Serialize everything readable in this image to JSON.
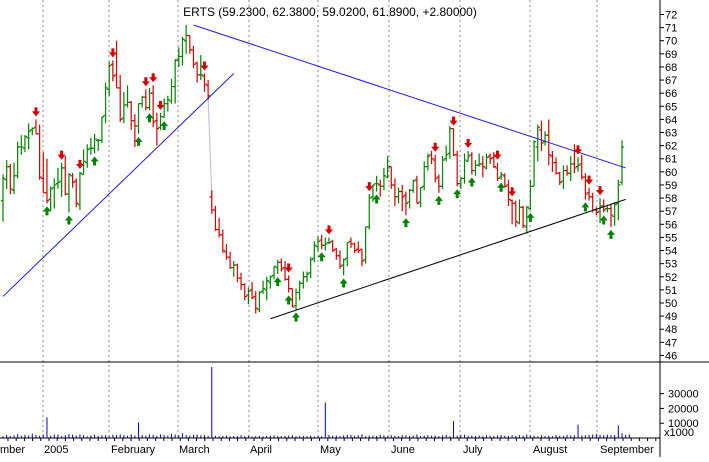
{
  "colors": {
    "up": "#008000",
    "down": "#d00000",
    "volume": "#0000c8",
    "trendline_upper": "#1c1cd6",
    "trendline_lower_left": "#1c1cd6",
    "trendline_lower_right": "#000000",
    "grid": "#888888",
    "frame": "#000000"
  },
  "chart_data": {
    "type": "candlestick",
    "title": "ERTS (59.2300, 62.3800, 59.0200, 61.8900, +2.80000)",
    "ticker": "ERTS",
    "last_bar": {
      "open": 59.23,
      "high": 62.38,
      "low": 59.02,
      "close": 61.89,
      "change": 2.8
    },
    "x_labels": [
      "mber",
      "2005",
      "February",
      "March",
      "April",
      "May",
      "June",
      "July",
      "August",
      "September"
    ],
    "price_axis": {
      "min": 45.5,
      "max": 72.8,
      "ticks": [
        "72",
        "71",
        "70",
        "69",
        "68",
        "67",
        "66",
        "65",
        "64",
        "63",
        "62",
        "61",
        "60",
        "59",
        "58",
        "57",
        "56",
        "55",
        "54",
        "53",
        "52",
        "51",
        "50",
        "49",
        "48",
        "47",
        "46"
      ]
    },
    "volume_axis": {
      "max": 48000,
      "ticks": [
        "30000",
        "20000",
        "10000"
      ],
      "unit_label": "x1000"
    },
    "trendlines": [
      {
        "name": "upper-resistance",
        "from": [
          52,
          71.2
        ],
        "to": [
          170,
          60.3
        ]
      },
      {
        "name": "lower-support-left",
        "from": [
          0,
          50.5
        ],
        "to": [
          63,
          67.5
        ]
      },
      {
        "name": "lower-support-right",
        "from": [
          73,
          48.8
        ],
        "to": [
          170,
          57.9
        ]
      }
    ],
    "buy_signals": [
      12,
      18,
      25,
      37,
      40,
      44,
      75,
      78,
      80,
      87,
      93,
      102,
      110,
      119,
      124,
      128,
      136,
      144,
      159,
      164,
      166
    ],
    "sell_signals": [
      9,
      16,
      21,
      30,
      39,
      41,
      43,
      55,
      78,
      89,
      100,
      118,
      123,
      127,
      135,
      139,
      157,
      160,
      163
    ],
    "ohlc": [
      [
        57.8,
        59.8,
        56.2,
        59.5
      ],
      [
        59.4,
        60.9,
        58.7,
        60.4
      ],
      [
        60.4,
        60.6,
        58.3,
        58.7
      ],
      [
        58.6,
        60.7,
        58.3,
        59.7
      ],
      [
        59.7,
        62.3,
        59.5,
        61.9
      ],
      [
        61.9,
        62.8,
        61.3,
        61.9
      ],
      [
        61.8,
        62.8,
        61.5,
        62.7
      ],
      [
        62.6,
        63.7,
        61.7,
        63.1
      ],
      [
        63.2,
        63.4,
        62.8,
        63.3
      ],
      [
        63.4,
        64.0,
        62.9,
        62.9
      ],
      [
        62.9,
        63.6,
        59.4,
        59.6
      ],
      [
        59.5,
        61.5,
        58.4,
        58.4
      ],
      [
        58.4,
        61.0,
        57.6,
        57.8
      ],
      [
        57.9,
        58.9,
        57.0,
        58.7
      ],
      [
        58.8,
        59.5,
        57.2,
        59.0
      ],
      [
        59.1,
        60.3,
        58.7,
        59.2
      ],
      [
        59.3,
        60.7,
        58.1,
        60.3
      ],
      [
        60.3,
        61.2,
        58.2,
        58.3
      ],
      [
        58.3,
        59.9,
        56.9,
        59.8
      ],
      [
        59.7,
        59.9,
        58.8,
        59.2
      ],
      [
        59.3,
        59.5,
        57.3,
        57.6
      ],
      [
        57.5,
        60.0,
        57.1,
        59.9
      ],
      [
        59.8,
        61.7,
        59.8,
        60.8
      ],
      [
        60.7,
        62.1,
        60.3,
        61.7
      ],
      [
        61.8,
        62.6,
        61.3,
        61.8
      ],
      [
        61.8,
        62.9,
        61.4,
        62.5
      ],
      [
        62.4,
        62.5,
        61.6,
        62.4
      ],
      [
        62.4,
        64.2,
        62.2,
        64.2
      ],
      [
        64.3,
        66.8,
        63.7,
        66.4
      ],
      [
        66.3,
        68.4,
        65.8,
        68.1
      ],
      [
        68.2,
        68.5,
        66.9,
        67.3
      ],
      [
        67.4,
        70.0,
        66.4,
        66.4
      ],
      [
        66.4,
        67.4,
        63.8,
        64.0
      ],
      [
        64.1,
        66.1,
        63.7,
        65.1
      ],
      [
        65.1,
        66.6,
        64.9,
        65.3
      ],
      [
        65.3,
        65.4,
        63.2,
        63.9
      ],
      [
        63.9,
        64.4,
        61.9,
        63.5
      ],
      [
        63.5,
        65.2,
        62.9,
        65.2
      ],
      [
        65.2,
        65.8,
        64.9,
        65.7
      ],
      [
        65.7,
        66.3,
        64.7,
        64.9
      ],
      [
        64.9,
        66.4,
        64.7,
        66.0
      ],
      [
        66.0,
        66.6,
        63.4,
        63.8
      ],
      [
        63.9,
        64.5,
        62.0,
        63.3
      ],
      [
        63.4,
        64.5,
        63.2,
        64.2
      ],
      [
        64.2,
        65.6,
        64.1,
        65.2
      ],
      [
        65.2,
        65.8,
        64.6,
        65.5
      ],
      [
        65.4,
        67.1,
        65.2,
        66.5
      ],
      [
        66.5,
        68.6,
        65.2,
        68.5
      ],
      [
        68.6,
        69.5,
        68.0,
        68.8
      ],
      [
        68.8,
        70.3,
        68.1,
        70.1
      ],
      [
        70.0,
        71.2,
        69.0,
        70.4
      ],
      [
        70.4,
        70.4,
        69.0,
        69.3
      ],
      [
        69.3,
        69.6,
        67.9,
        68.2
      ],
      [
        68.3,
        68.4,
        66.8,
        67.4
      ],
      [
        67.4,
        68.9,
        67.0,
        67.4
      ],
      [
        67.3,
        67.5,
        66.1,
        66.7
      ],
      [
        66.6,
        67.0,
        65.5,
        65.8
      ],
      [
        58.1,
        58.6,
        56.8,
        57.1
      ],
      [
        57.1,
        57.4,
        55.5,
        55.6
      ],
      [
        55.6,
        56.5,
        55.0,
        55.2
      ],
      [
        55.2,
        55.6,
        53.8,
        54.0
      ],
      [
        53.9,
        54.5,
        53.3,
        53.5
      ],
      [
        53.5,
        53.9,
        52.6,
        52.7
      ],
      [
        52.7,
        53.2,
        52.0,
        52.9
      ],
      [
        52.9,
        53.0,
        51.6,
        51.9
      ],
      [
        51.9,
        52.3,
        51.0,
        51.4
      ],
      [
        51.4,
        51.5,
        50.2,
        50.5
      ],
      [
        50.6,
        51.2,
        49.9,
        50.9
      ],
      [
        51.0,
        51.6,
        50.3,
        50.4
      ],
      [
        50.5,
        50.9,
        49.2,
        49.6
      ],
      [
        49.5,
        50.9,
        49.3,
        50.8
      ],
      [
        50.9,
        51.7,
        50.7,
        51.1
      ],
      [
        51.0,
        52.0,
        50.2,
        51.7
      ],
      [
        51.6,
        52.1,
        51.1,
        52.0
      ],
      [
        52.1,
        52.8,
        51.8,
        52.8
      ],
      [
        52.7,
        53.3,
        52.2,
        53.1
      ],
      [
        53.1,
        53.4,
        52.4,
        52.6
      ],
      [
        52.7,
        53.2,
        51.7,
        51.8
      ],
      [
        51.8,
        52.1,
        50.8,
        51.1
      ],
      [
        51.1,
        51.1,
        49.7,
        49.7
      ],
      [
        49.8,
        51.1,
        49.5,
        50.8
      ],
      [
        50.8,
        51.7,
        50.2,
        51.5
      ],
      [
        51.5,
        52.4,
        51.1,
        52.0
      ],
      [
        52.0,
        52.4,
        51.6,
        52.2
      ],
      [
        52.3,
        53.5,
        51.9,
        53.3
      ],
      [
        53.4,
        54.7,
        53.1,
        54.4
      ],
      [
        54.3,
        55.1,
        53.9,
        54.7
      ],
      [
        54.8,
        55.2,
        54.1,
        54.4
      ],
      [
        54.4,
        55.0,
        54.0,
        54.5
      ],
      [
        54.6,
        55.0,
        54.5,
        54.6
      ],
      [
        54.7,
        54.8,
        53.9,
        54.0
      ],
      [
        54.1,
        54.2,
        53.3,
        53.6
      ],
      [
        53.6,
        54.0,
        52.6,
        52.8
      ],
      [
        52.9,
        53.4,
        52.1,
        53.3
      ],
      [
        53.4,
        54.6,
        52.8,
        54.6
      ],
      [
        54.7,
        55.0,
        54.2,
        54.5
      ],
      [
        54.5,
        54.6,
        53.8,
        54.0
      ],
      [
        54.1,
        54.7,
        53.8,
        54.0
      ],
      [
        54.1,
        54.1,
        52.8,
        53.2
      ],
      [
        53.3,
        55.8,
        53.0,
        55.8
      ],
      [
        55.8,
        58.3,
        55.6,
        58.0
      ],
      [
        58.1,
        59.0,
        57.7,
        59.0
      ],
      [
        59.1,
        59.7,
        58.5,
        59.1
      ],
      [
        59.0,
        59.4,
        58.1,
        58.9
      ],
      [
        58.9,
        60.3,
        58.6,
        59.7
      ],
      [
        59.6,
        61.2,
        59.5,
        60.3
      ],
      [
        60.4,
        60.4,
        58.7,
        59.0
      ],
      [
        59.0,
        59.5,
        57.4,
        58.1
      ],
      [
        58.1,
        58.8,
        57.6,
        58.5
      ],
      [
        58.5,
        59.0,
        57.0,
        58.1
      ],
      [
        58.2,
        58.5,
        56.7,
        57.6
      ],
      [
        57.7,
        58.7,
        57.2,
        58.6
      ],
      [
        58.6,
        59.4,
        58.4,
        59.3
      ],
      [
        59.4,
        59.7,
        57.6,
        57.6
      ],
      [
        57.7,
        58.8,
        57.3,
        58.8
      ],
      [
        58.9,
        60.8,
        58.6,
        60.4
      ],
      [
        60.4,
        61.4,
        60.1,
        61.2
      ],
      [
        61.3,
        61.6,
        60.6,
        61.0
      ],
      [
        60.9,
        61.3,
        59.2,
        59.5
      ],
      [
        59.6,
        59.8,
        58.4,
        58.9
      ],
      [
        58.9,
        61.2,
        58.7,
        60.9
      ],
      [
        61.0,
        62.0,
        60.8,
        61.3
      ],
      [
        61.4,
        63.5,
        61.0,
        63.3
      ],
      [
        63.3,
        63.3,
        61.2,
        61.3
      ],
      [
        61.3,
        61.6,
        58.9,
        59.1
      ],
      [
        59.1,
        59.6,
        58.7,
        59.5
      ],
      [
        59.5,
        61.4,
        59.1,
        60.9
      ],
      [
        60.8,
        61.6,
        60.8,
        61.2
      ],
      [
        61.3,
        61.5,
        59.8,
        60.1
      ],
      [
        60.1,
        60.9,
        59.7,
        60.5
      ],
      [
        60.5,
        61.4,
        60.4,
        60.6
      ],
      [
        60.6,
        61.2,
        59.6,
        60.4
      ],
      [
        60.3,
        61.4,
        60.2,
        61.1
      ],
      [
        61.2,
        61.4,
        60.6,
        61.0
      ],
      [
        61.1,
        61.5,
        60.3,
        60.4
      ],
      [
        60.3,
        60.7,
        59.3,
        59.5
      ],
      [
        59.6,
        60.0,
        59.4,
        59.8
      ],
      [
        59.7,
        59.9,
        58.8,
        58.9
      ],
      [
        59.0,
        59.4,
        57.4,
        57.9
      ],
      [
        57.8,
        57.9,
        56.0,
        57.6
      ],
      [
        57.6,
        57.8,
        55.8,
        56.2
      ],
      [
        56.1,
        57.9,
        56.0,
        57.3
      ],
      [
        57.3,
        57.4,
        55.7,
        55.9
      ],
      [
        55.8,
        57.4,
        55.3,
        57.3
      ],
      [
        57.2,
        59.4,
        57.1,
        58.9
      ],
      [
        58.9,
        62.4,
        58.9,
        62.3
      ],
      [
        61.9,
        63.6,
        60.8,
        63.4
      ],
      [
        63.2,
        63.9,
        61.6,
        62.2
      ],
      [
        62.3,
        63.1,
        62.0,
        62.8
      ],
      [
        62.8,
        64.0,
        60.5,
        61.3
      ],
      [
        61.2,
        61.6,
        60.0,
        60.7
      ],
      [
        60.7,
        61.1,
        59.8,
        59.9
      ],
      [
        59.9,
        60.0,
        59.0,
        59.2
      ],
      [
        59.3,
        60.5,
        58.7,
        60.1
      ],
      [
        60.1,
        60.5,
        59.7,
        59.9
      ],
      [
        59.9,
        61.2,
        59.3,
        60.6
      ],
      [
        60.6,
        62.1,
        59.9,
        60.3
      ],
      [
        60.4,
        61.1,
        60.0,
        60.5
      ],
      [
        60.6,
        61.3,
        59.4,
        59.6
      ],
      [
        59.6,
        59.9,
        57.9,
        58.3
      ],
      [
        58.4,
        58.8,
        57.8,
        58.1
      ],
      [
        58.1,
        58.4,
        56.9,
        57.1
      ],
      [
        57.1,
        57.3,
        56.7,
        56.9
      ],
      [
        57.0,
        58.0,
        56.1,
        57.4
      ],
      [
        57.4,
        57.9,
        56.9,
        57.1
      ],
      [
        57.2,
        57.5,
        56.9,
        57.2
      ],
      [
        57.2,
        57.5,
        55.8,
        56.7
      ],
      [
        56.6,
        57.7,
        55.9,
        57.5
      ],
      [
        57.6,
        59.4,
        56.3,
        59.0
      ],
      [
        59.2,
        62.4,
        59.0,
        61.9
      ]
    ],
    "volume": [
      1.2,
      2.1,
      1.3,
      1.8,
      2.6,
      1.5,
      2.1,
      1.7,
      3.0,
      2.0,
      1.6,
      2.4,
      1.8,
      1.5,
      2.2,
      2.4,
      1.2,
      1.9,
      2.7,
      2.2,
      1.6,
      2.5,
      1.9,
      1.1,
      1.6,
      2.3,
      1.4,
      1.9,
      2.0,
      1.3,
      2.2,
      1.9,
      2.4,
      2.0,
      1.5,
      2.5,
      1.7,
      2.0,
      1.9,
      1.6,
      2.5,
      2.2,
      1.5,
      2.3,
      2.1,
      1.7,
      2.8,
      2.5,
      1.8,
      3.2,
      2.0,
      1.6,
      2.2,
      2.4,
      1.8,
      1.9,
      1.5,
      3.4,
      1.4,
      1.2,
      1.5,
      1.7,
      1.1,
      1.4,
      1.3,
      1.9,
      1.2,
      1.6,
      1.0,
      1.3,
      1.5,
      1.1,
      1.3,
      1.6,
      1.8,
      1.3,
      1.2,
      1.5,
      1.6,
      1.9,
      1.2,
      1.5,
      1.4,
      1.3,
      1.7,
      1.1,
      1.6,
      1.2,
      1.4,
      2.1,
      1.5,
      1.7,
      1.3,
      1.8,
      2.2,
      2.0,
      1.4,
      1.8,
      2.5,
      1.3,
      1.7,
      1.6,
      1.4,
      2.1,
      1.8,
      1.2,
      1.9,
      1.6,
      1.3,
      2.0,
      1.8,
      1.5,
      1.7,
      2.3,
      1.4,
      1.6,
      1.9,
      1.5,
      1.7,
      1.3,
      1.8,
      2.1,
      1.2,
      1.5,
      1.6,
      1.9,
      2.2,
      1.5,
      1.7,
      1.4,
      1.6,
      1.2,
      1.8,
      1.6,
      1.3,
      1.7,
      2.0,
      1.5,
      1.4,
      1.8,
      1.3,
      1.9,
      1.7,
      2.4,
      1.6,
      1.5,
      1.2,
      1.8,
      1.4,
      1.7,
      1.3,
      1.9,
      1.6,
      1.5,
      2.0,
      1.7,
      1.8,
      1.4,
      1.6,
      1.9,
      2.1,
      2.4,
      2.7,
      2.2,
      1.8,
      2.3,
      1.9,
      2.0,
      1.5,
      3.1,
      1.9,
      2.4
    ],
    "volume_spikes": [
      {
        "bar": 12,
        "value": 14000
      },
      {
        "bar": 37,
        "value": 10500
      },
      {
        "bar": 57,
        "value": 48000
      },
      {
        "bar": 88,
        "value": 24000
      },
      {
        "bar": 123,
        "value": 11500
      },
      {
        "bar": 157,
        "value": 9000
      },
      {
        "bar": 168,
        "value": 8500
      }
    ],
    "grid": "dashed vertical month lines"
  }
}
